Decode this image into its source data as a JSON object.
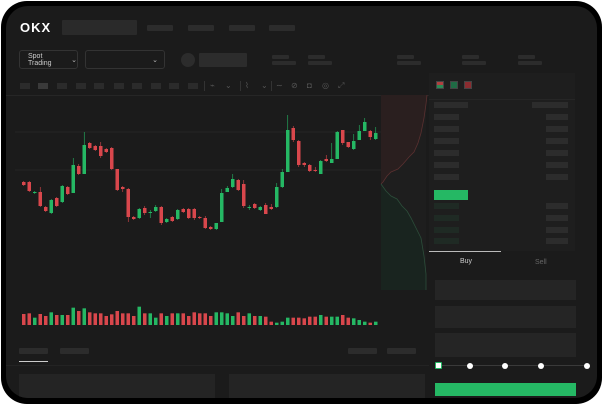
{
  "header": {
    "logo": "OKX",
    "mode_selector": "Spot Trading",
    "mode_chevron": "⌄",
    "pair_chevron": "⌄"
  },
  "colors": {
    "up": "#25b864",
    "down": "#d9474c",
    "background": "#1b1b1b",
    "accent": "#25b864"
  },
  "order_panel": {
    "tabs": [
      "Buy",
      "Sell"
    ],
    "active_tab": "Buy",
    "leverage_slider_level": 0,
    "submit_color": "#25b864"
  },
  "chart_data": {
    "type": "candlestick",
    "ohlc": [
      [
        118,
        119,
        114,
        115
      ],
      [
        118,
        119,
        108,
        109
      ],
      [
        107,
        109,
        106,
        108
      ],
      [
        108,
        113,
        93,
        94
      ],
      [
        93,
        94,
        88,
        89
      ],
      [
        87,
        101,
        86,
        100
      ],
      [
        102,
        103,
        93,
        94
      ],
      [
        98,
        115,
        97,
        114
      ],
      [
        113,
        114,
        105,
        106
      ],
      [
        107,
        142,
        107,
        135
      ],
      [
        134,
        136,
        125,
        126
      ],
      [
        126,
        168,
        126,
        155
      ],
      [
        157,
        158,
        151,
        152
      ],
      [
        154,
        155,
        149,
        150
      ],
      [
        154,
        158,
        142,
        144
      ],
      [
        151,
        152,
        147,
        148
      ],
      [
        152,
        153,
        130,
        131
      ],
      [
        131,
        131,
        109,
        110
      ],
      [
        113,
        114,
        108,
        111
      ],
      [
        111,
        112,
        78,
        83
      ],
      [
        83,
        84,
        80,
        81
      ],
      [
        82,
        92,
        81,
        91
      ],
      [
        92,
        94,
        85,
        87
      ],
      [
        87,
        90,
        82,
        88
      ],
      [
        89,
        95,
        88,
        93
      ],
      [
        93,
        94,
        75,
        77
      ],
      [
        78,
        82,
        77,
        81
      ],
      [
        83,
        84,
        78,
        79
      ],
      [
        81,
        91,
        80,
        90
      ],
      [
        91,
        92,
        87,
        88
      ],
      [
        91,
        92,
        81,
        82
      ],
      [
        91,
        92,
        80,
        82
      ],
      [
        83,
        84,
        81,
        82
      ],
      [
        82,
        84,
        71,
        72
      ],
      [
        73,
        74,
        70,
        71
      ],
      [
        71,
        77,
        70,
        77
      ],
      [
        78,
        111,
        78,
        107
      ],
      [
        108,
        114,
        108,
        112
      ],
      [
        113,
        126,
        112,
        121
      ],
      [
        120,
        121,
        109,
        110
      ],
      [
        116,
        120,
        92,
        94
      ],
      [
        92,
        95,
        90,
        93
      ],
      [
        96,
        97,
        91,
        92
      ],
      [
        90,
        94,
        89,
        93
      ],
      [
        95,
        97,
        86,
        86
      ],
      [
        93,
        96,
        90,
        91
      ],
      [
        93,
        117,
        92,
        113
      ],
      [
        113,
        131,
        112,
        128
      ],
      [
        128,
        185,
        128,
        170
      ],
      [
        172,
        174,
        158,
        160
      ],
      [
        159,
        160,
        133,
        135
      ],
      [
        137,
        138,
        133,
        135
      ],
      [
        135,
        136,
        128,
        129
      ],
      [
        130,
        133,
        128,
        129
      ],
      [
        126,
        140,
        126,
        139
      ],
      [
        141,
        145,
        138,
        139
      ],
      [
        137,
        157,
        137,
        141
      ],
      [
        141,
        169,
        141,
        168
      ],
      [
        170,
        170,
        155,
        157
      ],
      [
        158,
        158,
        152,
        153
      ],
      [
        151,
        166,
        150,
        159
      ],
      [
        160,
        175,
        160,
        169
      ],
      [
        169,
        182,
        169,
        178
      ],
      [
        169,
        170,
        160,
        163
      ],
      [
        161,
        173,
        160,
        167
      ]
    ],
    "volume": [
      33,
      35,
      22,
      33,
      27,
      38,
      30,
      30,
      30,
      52,
      42,
      50,
      38,
      35,
      35,
      27,
      32,
      42,
      35,
      35,
      27,
      55,
      35,
      35,
      22,
      35,
      27,
      35,
      35,
      35,
      27,
      38,
      35,
      35,
      27,
      38,
      38,
      35,
      27,
      38,
      27,
      35,
      27,
      27,
      25,
      10,
      7,
      10,
      22,
      22,
      22,
      20,
      25,
      25,
      30,
      25,
      25,
      25,
      30,
      22,
      20,
      15,
      10,
      7,
      10
    ]
  }
}
